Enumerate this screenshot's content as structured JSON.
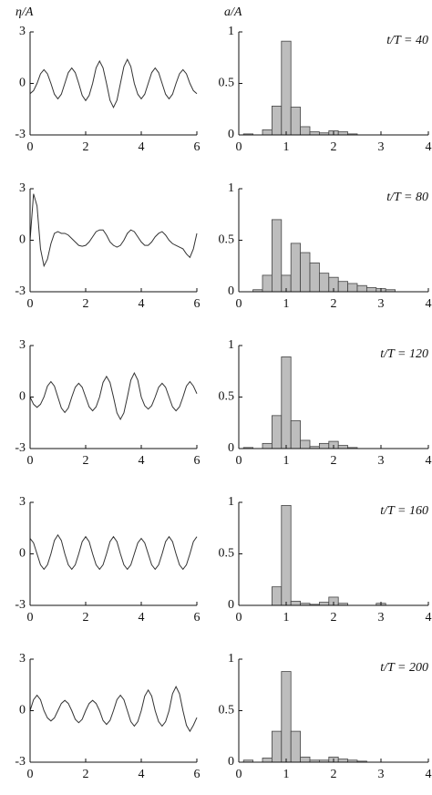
{
  "chart_data": [
    {
      "type": "line",
      "y_label": "η/A",
      "xlim": [
        0,
        6
      ],
      "xticks": [
        0,
        2,
        4,
        6
      ],
      "ylim": [
        -3,
        3
      ],
      "yticks": [
        -3,
        0,
        3
      ],
      "color": "#333333",
      "x": [
        0,
        0.125,
        0.25,
        0.375,
        0.5,
        0.625,
        0.75,
        0.875,
        1,
        1.125,
        1.25,
        1.375,
        1.5,
        1.625,
        1.75,
        1.875,
        2,
        2.125,
        2.25,
        2.375,
        2.5,
        2.625,
        2.75,
        2.875,
        3,
        3.125,
        3.25,
        3.375,
        3.5,
        3.625,
        3.75,
        3.875,
        4,
        4.125,
        4.25,
        4.375,
        4.5,
        4.625,
        4.75,
        4.875,
        5,
        5.125,
        5.25,
        5.375,
        5.5,
        5.625,
        5.75,
        5.875,
        6
      ],
      "values": [
        -0.6,
        -0.42,
        0,
        0.56,
        0.8,
        0.56,
        0,
        -0.63,
        -0.9,
        -0.63,
        0,
        0.63,
        0.9,
        0.63,
        0,
        -0.7,
        -1.0,
        -0.7,
        0,
        0.91,
        1.3,
        0.91,
        0,
        -0.98,
        -1.4,
        -0.98,
        0,
        0.98,
        1.4,
        0.98,
        0,
        -0.63,
        -0.9,
        -0.63,
        0,
        0.63,
        0.9,
        0.63,
        0,
        -0.63,
        -0.9,
        -0.63,
        0,
        0.56,
        0.8,
        0.56,
        0,
        -0.42,
        -0.6
      ]
    },
    {
      "type": "histogram",
      "y_label": "a/A",
      "annotation": "t/T = 40",
      "xlim": [
        0,
        4
      ],
      "xticks": [
        0,
        1,
        2,
        3,
        4
      ],
      "ylim": [
        0,
        1
      ],
      "yticks": [
        0,
        0.5,
        1
      ],
      "color": "#bdbdbd",
      "bins": [
        0.1,
        0.3,
        0.5,
        0.7,
        0.9,
        1.1,
        1.3,
        1.5,
        1.7,
        1.9,
        2.1,
        2.3,
        2.5,
        2.7,
        2.9,
        3.1,
        3.3
      ],
      "values": [
        0.01,
        0,
        0.05,
        0.28,
        0.91,
        0.27,
        0.08,
        0.03,
        0.02,
        0.04,
        0.03,
        0.01,
        0,
        0,
        0,
        0
      ]
    },
    {
      "type": "line",
      "xlim": [
        0,
        6
      ],
      "xticks": [
        0,
        2,
        4,
        6
      ],
      "ylim": [
        -3,
        3
      ],
      "yticks": [
        -3,
        0,
        3
      ],
      "color": "#333333",
      "x": [
        0,
        0.125,
        0.25,
        0.375,
        0.5,
        0.625,
        0.75,
        0.875,
        1,
        1.125,
        1.25,
        1.375,
        1.5,
        1.625,
        1.75,
        1.875,
        2,
        2.125,
        2.25,
        2.375,
        2.5,
        2.625,
        2.75,
        2.875,
        3,
        3.125,
        3.25,
        3.375,
        3.5,
        3.625,
        3.75,
        3.875,
        4,
        4.125,
        4.25,
        4.375,
        4.5,
        4.625,
        4.75,
        4.875,
        5,
        5.125,
        5.25,
        5.375,
        5.5,
        5.625,
        5.75,
        5.875,
        6
      ],
      "values": [
        0,
        2.7,
        2.0,
        -0.5,
        -1.5,
        -1.1,
        -0.2,
        0.4,
        0.5,
        0.4,
        0.4,
        0.3,
        0.1,
        -0.1,
        -0.3,
        -0.35,
        -0.3,
        -0.1,
        0.2,
        0.5,
        0.6,
        0.6,
        0.3,
        -0.1,
        -0.3,
        -0.4,
        -0.3,
        0,
        0.4,
        0.6,
        0.5,
        0.2,
        -0.1,
        -0.3,
        -0.3,
        -0.1,
        0.2,
        0.4,
        0.5,
        0.3,
        0,
        -0.2,
        -0.3,
        -0.4,
        -0.5,
        -0.8,
        -1.0,
        -0.5,
        0.4
      ]
    },
    {
      "type": "histogram",
      "annotation": "t/T = 80",
      "xlim": [
        0,
        4
      ],
      "xticks": [
        0,
        1,
        2,
        3,
        4
      ],
      "ylim": [
        0,
        1
      ],
      "yticks": [
        0,
        0.5,
        1
      ],
      "color": "#bdbdbd",
      "bins": [
        0.1,
        0.3,
        0.5,
        0.7,
        0.9,
        1.1,
        1.3,
        1.5,
        1.7,
        1.9,
        2.1,
        2.3,
        2.5,
        2.7,
        2.9,
        3.1,
        3.3
      ],
      "values": [
        0,
        0.02,
        0.16,
        0.7,
        0.16,
        0.47,
        0.38,
        0.28,
        0.18,
        0.14,
        0.1,
        0.08,
        0.06,
        0.04,
        0.03,
        0.02
      ]
    },
    {
      "type": "line",
      "xlim": [
        0,
        6
      ],
      "xticks": [
        0,
        2,
        4,
        6
      ],
      "ylim": [
        -3,
        3
      ],
      "yticks": [
        -3,
        0,
        3
      ],
      "color": "#333333",
      "x": [
        0,
        0.125,
        0.25,
        0.375,
        0.5,
        0.625,
        0.75,
        0.875,
        1,
        1.125,
        1.25,
        1.375,
        1.5,
        1.625,
        1.75,
        1.875,
        2,
        2.125,
        2.25,
        2.375,
        2.5,
        2.625,
        2.75,
        2.875,
        3,
        3.125,
        3.25,
        3.375,
        3.5,
        3.625,
        3.75,
        3.875,
        4,
        4.125,
        4.25,
        4.375,
        4.5,
        4.625,
        4.75,
        4.875,
        5,
        5.125,
        5.25,
        5.375,
        5.5,
        5.625,
        5.75,
        5.875,
        6
      ],
      "values": [
        0,
        -0.42,
        -0.6,
        -0.42,
        0,
        0.64,
        0.9,
        0.64,
        0,
        -0.64,
        -0.9,
        -0.64,
        0,
        0.57,
        0.8,
        0.57,
        0,
        -0.57,
        -0.8,
        -0.57,
        0,
        0.85,
        1.2,
        0.85,
        0,
        -0.92,
        -1.3,
        -0.92,
        0,
        0.99,
        1.4,
        0.99,
        0,
        -0.5,
        -0.7,
        -0.5,
        0,
        0.57,
        0.8,
        0.57,
        0,
        -0.57,
        -0.8,
        -0.57,
        0,
        0.64,
        0.9,
        0.64,
        0.2
      ]
    },
    {
      "type": "histogram",
      "annotation": "t/T = 120",
      "xlim": [
        0,
        4
      ],
      "xticks": [
        0,
        1,
        2,
        3,
        4
      ],
      "ylim": [
        0,
        1
      ],
      "yticks": [
        0,
        0.5,
        1
      ],
      "color": "#bdbdbd",
      "bins": [
        0.1,
        0.3,
        0.5,
        0.7,
        0.9,
        1.1,
        1.3,
        1.5,
        1.7,
        1.9,
        2.1,
        2.3,
        2.5,
        2.7,
        2.9,
        3.1,
        3.3
      ],
      "values": [
        0.01,
        0,
        0.05,
        0.32,
        0.89,
        0.27,
        0.08,
        0.02,
        0.05,
        0.07,
        0.03,
        0.01,
        0,
        0,
        0,
        0
      ]
    },
    {
      "type": "line",
      "xlim": [
        0,
        6
      ],
      "xticks": [
        0,
        2,
        4,
        6
      ],
      "ylim": [
        -3,
        3
      ],
      "yticks": [
        -3,
        0,
        3
      ],
      "color": "#333333",
      "x": [
        0,
        0.125,
        0.25,
        0.375,
        0.5,
        0.625,
        0.75,
        0.875,
        1,
        1.125,
        1.25,
        1.375,
        1.5,
        1.625,
        1.75,
        1.875,
        2,
        2.125,
        2.25,
        2.375,
        2.5,
        2.625,
        2.75,
        2.875,
        3,
        3.125,
        3.25,
        3.375,
        3.5,
        3.625,
        3.75,
        3.875,
        4,
        4.125,
        4.25,
        4.375,
        4.5,
        4.625,
        4.75,
        4.875,
        5,
        5.125,
        5.25,
        5.375,
        5.5,
        5.625,
        5.75,
        5.875,
        6
      ],
      "values": [
        0.9,
        0.64,
        0,
        -0.64,
        -0.9,
        -0.64,
        0,
        0.78,
        1.1,
        0.78,
        0,
        -0.64,
        -0.9,
        -0.64,
        0,
        0.71,
        1.0,
        0.71,
        0,
        -0.64,
        -0.9,
        -0.64,
        0,
        0.71,
        1.0,
        0.71,
        0,
        -0.64,
        -0.9,
        -0.64,
        0,
        0.64,
        0.9,
        0.64,
        0,
        -0.64,
        -0.9,
        -0.64,
        0,
        0.71,
        1.0,
        0.71,
        0,
        -0.64,
        -0.9,
        -0.64,
        0,
        0.71,
        1.0
      ]
    },
    {
      "type": "histogram",
      "annotation": "t/T = 160",
      "xlim": [
        0,
        4
      ],
      "xticks": [
        0,
        1,
        2,
        3,
        4
      ],
      "ylim": [
        0,
        1
      ],
      "yticks": [
        0,
        0.5,
        1
      ],
      "color": "#bdbdbd",
      "bins": [
        0.1,
        0.3,
        0.5,
        0.7,
        0.9,
        1.1,
        1.3,
        1.5,
        1.7,
        1.9,
        2.1,
        2.3,
        2.5,
        2.7,
        2.9,
        3.1,
        3.3
      ],
      "values": [
        0,
        0,
        0,
        0.18,
        0.97,
        0.04,
        0.02,
        0.01,
        0.03,
        0.08,
        0.02,
        0,
        0,
        0,
        0.02,
        0
      ]
    },
    {
      "type": "line",
      "xlim": [
        0,
        6
      ],
      "xticks": [
        0,
        2,
        4,
        6
      ],
      "ylim": [
        -3,
        3
      ],
      "yticks": [
        -3,
        0,
        3
      ],
      "color": "#333333",
      "x": [
        0,
        0.125,
        0.25,
        0.375,
        0.5,
        0.625,
        0.75,
        0.875,
        1,
        1.125,
        1.25,
        1.375,
        1.5,
        1.625,
        1.75,
        1.875,
        2,
        2.125,
        2.25,
        2.375,
        2.5,
        2.625,
        2.75,
        2.875,
        3,
        3.125,
        3.25,
        3.375,
        3.5,
        3.625,
        3.75,
        3.875,
        4,
        4.125,
        4.25,
        4.375,
        4.5,
        4.625,
        4.75,
        4.875,
        5,
        5.125,
        5.25,
        5.375,
        5.5,
        5.625,
        5.75,
        5.875,
        6
      ],
      "values": [
        0,
        0.64,
        0.9,
        0.64,
        0,
        -0.42,
        -0.6,
        -0.42,
        0,
        0.42,
        0.6,
        0.42,
        0,
        -0.5,
        -0.7,
        -0.5,
        0,
        0.42,
        0.6,
        0.42,
        0,
        -0.57,
        -0.8,
        -0.57,
        0,
        0.64,
        0.9,
        0.64,
        0,
        -0.64,
        -0.9,
        -0.64,
        0,
        0.85,
        1.2,
        0.85,
        0,
        -0.64,
        -0.9,
        -0.64,
        0,
        0.99,
        1.4,
        0.99,
        0,
        -0.85,
        -1.2,
        -0.85,
        -0.4
      ]
    },
    {
      "type": "histogram",
      "annotation": "t/T = 200",
      "xlim": [
        0,
        4
      ],
      "xticks": [
        0,
        1,
        2,
        3,
        4
      ],
      "ylim": [
        0,
        1
      ],
      "yticks": [
        0,
        0.5,
        1
      ],
      "color": "#bdbdbd",
      "bins": [
        0.1,
        0.3,
        0.5,
        0.7,
        0.9,
        1.1,
        1.3,
        1.5,
        1.7,
        1.9,
        2.1,
        2.3,
        2.5,
        2.7,
        2.9,
        3.1,
        3.3
      ],
      "values": [
        0.02,
        0,
        0.04,
        0.3,
        0.88,
        0.3,
        0.05,
        0.02,
        0.02,
        0.05,
        0.03,
        0.02,
        0.01,
        0,
        0,
        0
      ]
    }
  ]
}
